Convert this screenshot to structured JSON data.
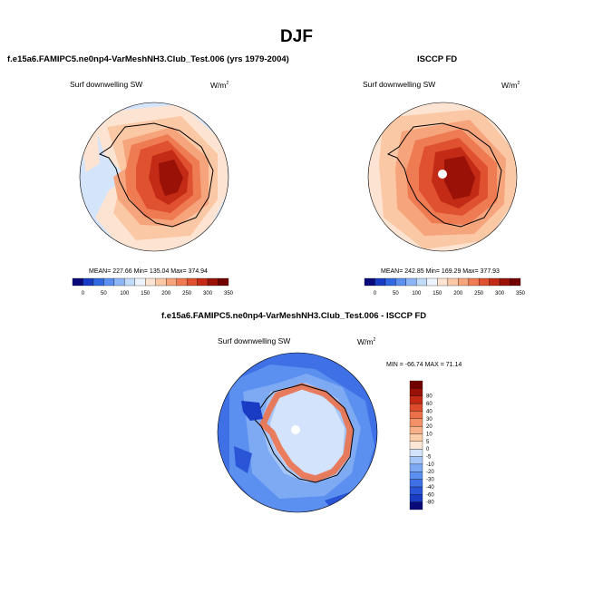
{
  "main_title": "DJF",
  "panels": [
    {
      "title": "f.e15a6.FAMIPC5.ne0np4-VarMeshNH3.Club_Test.006 (yrs 1979-2004)",
      "left_label": "Surf downwelling SW",
      "units": "W/m",
      "units_sup": "2",
      "stats_text": "MEAN= 227.66  Min= 135.04  Max= 374.94"
    },
    {
      "title": "ISCCP FD",
      "left_label": "Surf downwelling SW",
      "units": "W/m",
      "units_sup": "2",
      "stats_text": "MEAN= 242.85  Min= 169.29  Max= 377.93"
    },
    {
      "title": "f.e15a6.FAMIPC5.ne0np4-VarMeshNH3.Club_Test.006 - ISCCP FD",
      "left_label": "Surf downwelling SW",
      "units": "W/m",
      "units_sup": "2",
      "stats_text": "MIN = -66.74 MAX =  71.14"
    }
  ],
  "colorbar_horizontal": {
    "colors": [
      "#0a0a7a",
      "#1a3cc4",
      "#2f68e0",
      "#5b8ff0",
      "#8cb5f5",
      "#c2dbf9",
      "#eef4fc",
      "#fde4d2",
      "#fbc8a6",
      "#f6a47c",
      "#ee7b52",
      "#e0512f",
      "#c42b16",
      "#9a1108",
      "#720000"
    ],
    "labels": [
      "0",
      "50",
      "100",
      "150",
      "200",
      "250",
      "300",
      "350"
    ]
  },
  "colorbar_vertical": {
    "colors": [
      "#0a0a7a",
      "#1a3cc4",
      "#2a55d6",
      "#3f70e6",
      "#5b8ff0",
      "#7ea9f3",
      "#a6c6f7",
      "#d2e3fb",
      "#fce7d6",
      "#fbcdaa",
      "#f8b088",
      "#f39168",
      "#ec714b",
      "#dc4c2c",
      "#c22a15",
      "#9a1108",
      "#720000"
    ],
    "labels": [
      "-80",
      "-60",
      "-40",
      "-30",
      "-20",
      "-10",
      "-5",
      "0",
      "5",
      "10",
      "20",
      "30",
      "40",
      "60",
      "80"
    ]
  }
}
